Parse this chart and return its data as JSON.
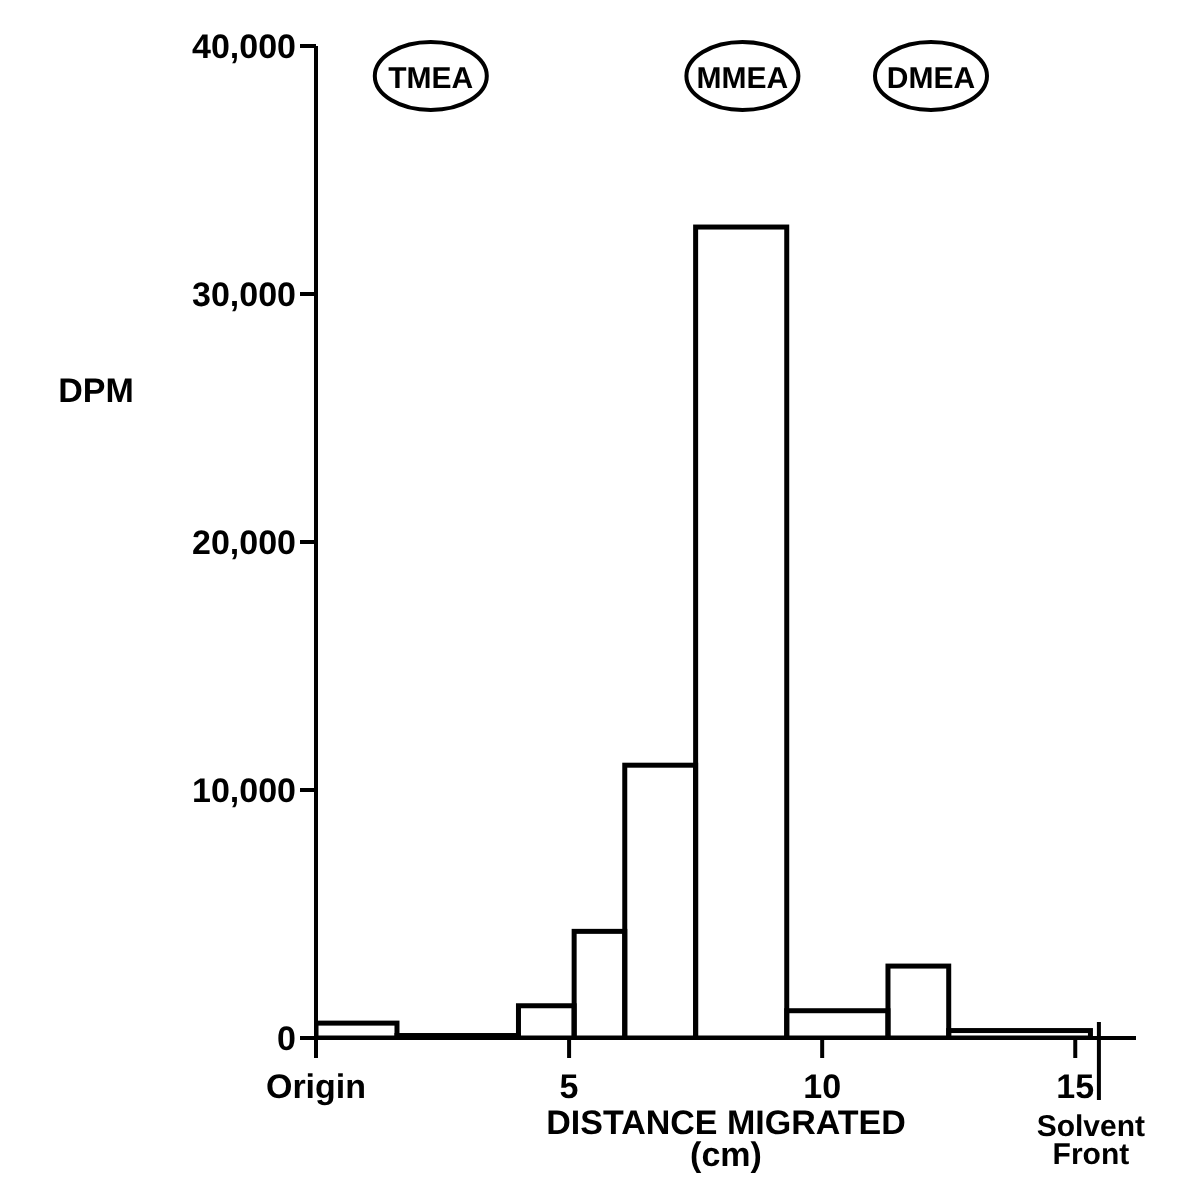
{
  "chart_data": {
    "type": "histogram",
    "xlabel": "DISTANCE MIGRATED\n(cm)",
    "ylabel": "DPM",
    "bins": [
      0,
      1.6,
      4,
      5.1,
      6.1,
      7.5,
      9.3,
      11.3,
      12.5,
      15.3
    ],
    "values": [
      600,
      100,
      1300,
      4300,
      11000,
      32700,
      1100,
      2900,
      300
    ],
    "color": "#000000",
    "xlim": [
      0,
      16.2
    ],
    "xticks": [
      {
        "value": 0,
        "label": "Origin"
      },
      5,
      10,
      15
    ],
    "ylim": [
      0,
      40000
    ],
    "yticks": [
      {
        "value": 0,
        "label": "0"
      },
      {
        "value": 10000,
        "label": "10,000"
      },
      {
        "value": 20000,
        "label": "20,000"
      },
      {
        "value": 30000,
        "label": "30,000"
      },
      {
        "value": 40000,
        "label": "40,000"
      }
    ],
    "annotations": [
      "TMEA",
      "MMEA",
      "DMEA",
      "Solvent\nFront"
    ],
    "grid": false,
    "legend": false
  }
}
